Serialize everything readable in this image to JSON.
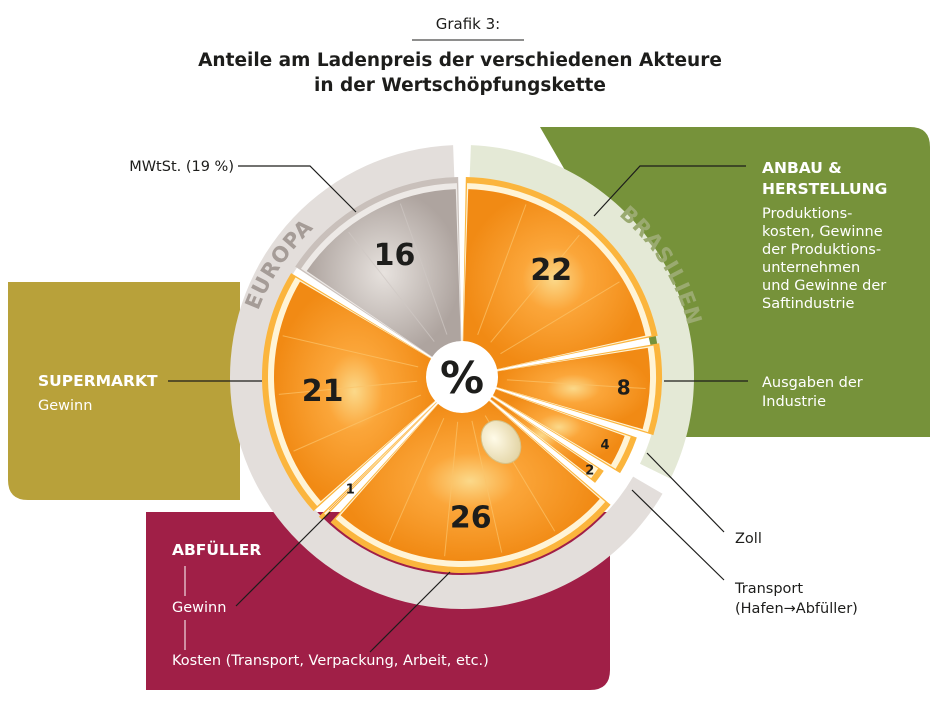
{
  "figure_label": "Grafik 3:",
  "title_line1": "Anteile am Ladenpreis der verschiedenen Akteure",
  "title_line2": "in der Wertschöpfungskette",
  "center_label": "%",
  "ring_labels": {
    "europa": "EUROPA",
    "brasilien": "BRASILIEN"
  },
  "colors": {
    "orange": "#f7941d",
    "orange_dark": "#e8730f",
    "rind": "#fbb53d",
    "pith": "#fff4d6",
    "grey_slice": "#b5aca8",
    "ring_grey": "#e3dedb",
    "ring_green": "#e4e9d6",
    "green_panel": "#76923a",
    "olive_panel": "#b8a13a",
    "crimson_panel": "#a01f47"
  },
  "panels": {
    "anbau": {
      "title1": "ANBAU &",
      "title2": "HERSTELLUNG",
      "lines": [
        "Produktions-",
        "kosten, Gewinne",
        "der Produktions-",
        "unternehmen",
        "und Gewinne der",
        "Saftindustrie"
      ],
      "ausgaben1": "Ausgaben der",
      "ausgaben2": "Industrie"
    },
    "supermarkt": {
      "title": "SUPERMARKT",
      "sub": "Gewinn"
    },
    "abfueller": {
      "title": "ABFÜLLER",
      "gewinn": "Gewinn",
      "kosten": "Kosten (Transport, Verpackung, Arbeit, etc.)"
    }
  },
  "callouts": {
    "mwst": "MWtSt. (19 %)",
    "zoll": "Zoll",
    "transport1": "Transport",
    "transport2": "(Hafen→Abfüller)"
  },
  "chart_data": {
    "type": "pie",
    "unit": "%",
    "categories": [
      "Anbau & Herstellung",
      "Ausgaben der Industrie",
      "Zoll",
      "Transport (Hafen→Abfüller)",
      "Abfüller Kosten",
      "Abfüller Gewinn",
      "Supermarkt Gewinn",
      "MWtSt. (19 %)"
    ],
    "values": [
      22,
      8,
      4,
      2,
      26,
      1,
      21,
      16
    ],
    "value_labels": [
      "22",
      "8",
      "4",
      "2",
      "26",
      "1",
      "21",
      "16"
    ],
    "regions": [
      {
        "name": "BRASILIEN",
        "categories": [
          "Anbau & Herstellung",
          "Ausgaben der Industrie"
        ]
      },
      {
        "name": "EUROPA",
        "categories": [
          "Zoll",
          "Transport (Hafen→Abfüller)",
          "Abfüller Kosten",
          "Abfüller Gewinn",
          "Supermarkt Gewinn",
          "MWtSt. (19 %)"
        ]
      }
    ]
  }
}
